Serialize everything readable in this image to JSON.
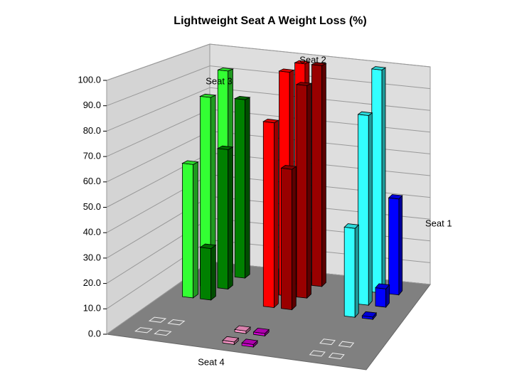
{
  "chart_data": {
    "type": "bar3d",
    "title": "Lightweight Seat A Weight Loss (%)",
    "ylim": [
      0,
      100
    ],
    "yticks": [
      {
        "value": 0,
        "label": "0.0"
      },
      {
        "value": 10,
        "label": "10.0"
      },
      {
        "value": 20,
        "label": "20.0"
      },
      {
        "value": 30,
        "label": "30.0"
      },
      {
        "value": 40,
        "label": "40.0"
      },
      {
        "value": 50,
        "label": "50.0"
      },
      {
        "value": 60,
        "label": "60.0"
      },
      {
        "value": 70,
        "label": "70.0"
      },
      {
        "value": 80,
        "label": "80.0"
      },
      {
        "value": 90,
        "label": "90.0"
      },
      {
        "value": 100,
        "label": "100.0"
      }
    ],
    "grid": true,
    "series": [
      {
        "name": "Seat 1",
        "bars": [
          {
            "color": "#33ffff",
            "values": [
              38,
              83,
              100
            ]
          },
          {
            "color": "#0000ff",
            "values": [
              1,
              8,
              43
            ]
          }
        ]
      },
      {
        "name": "Seat 2",
        "bars": [
          {
            "color": "#ff0000",
            "values": [
              79,
              98,
              99
            ]
          },
          {
            "color": "#990000",
            "values": [
              60,
              93,
              99
            ]
          }
        ]
      },
      {
        "name": "Seat 3",
        "bars": [
          {
            "color": "#33ff33",
            "values": [
              57,
              83,
              92
            ]
          },
          {
            "color": "#008000",
            "values": [
              22,
              61,
              80
            ]
          }
        ]
      },
      {
        "name": "Seat 4",
        "bars": [
          {
            "color": "#ff99cc",
            "values": [
              0,
              0,
              1,
              1,
              0,
              0
            ]
          },
          {
            "color": "#cc00cc",
            "values": [
              0,
              0,
              1,
              1,
              0,
              0
            ]
          }
        ]
      }
    ]
  }
}
